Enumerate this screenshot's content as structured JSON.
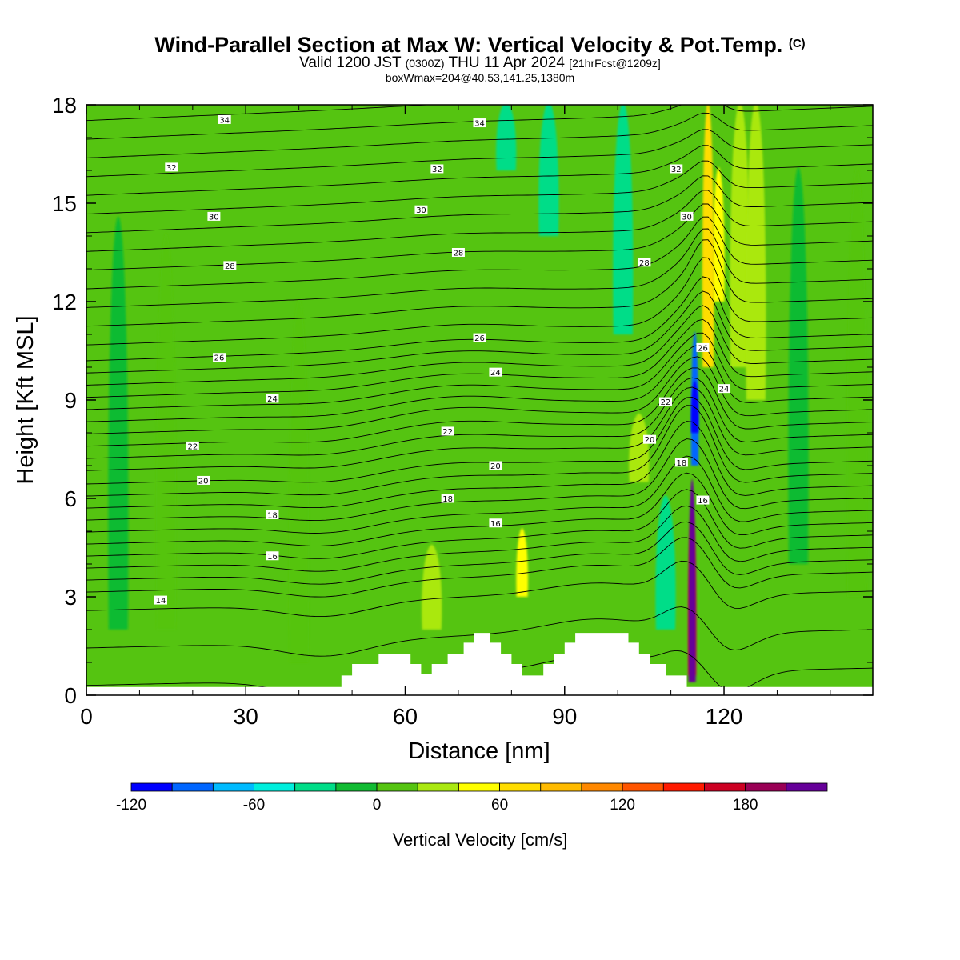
{
  "title": {
    "main": "Wind-Parallel Section at Max W: Vertical Velocity & Pot.Temp.",
    "copyright": "(C)",
    "valid_prefix": "Valid 1200 JST",
    "valid_utc": "(0300Z)",
    "valid_date": "THU 11 Apr 2024",
    "forecast_info": "[21hrFcst@1209z]",
    "box_info": "boxWmax=204@40.53,141.25,1380m"
  },
  "chart_data": {
    "type": "heatmap",
    "xlabel": "Distance [nm]",
    "ylabel": "Height [Kft MSL]",
    "xlim": [
      0,
      148
    ],
    "ylim": [
      0,
      18
    ],
    "x_ticks": [
      0,
      30,
      60,
      90,
      120
    ],
    "y_ticks": [
      0,
      3,
      6,
      9,
      12,
      15,
      18
    ],
    "colorbar": {
      "label": "Vertical Velocity [cm/s]",
      "range": [
        -120,
        220
      ],
      "step": 20,
      "tick_values": [
        -120,
        -60,
        0,
        60,
        120,
        180
      ],
      "tick_labels": [
        "-120",
        "-60",
        "0",
        "60",
        "120",
        "180"
      ],
      "colors": [
        "#0000ff",
        "#0066ff",
        "#00bbff",
        "#00eedd",
        "#00dd88",
        "#11bb33",
        "#55c411",
        "#aae811",
        "#ffff00",
        "#ffdd00",
        "#ffbb00",
        "#ff8800",
        "#ff5500",
        "#ff1a00",
        "#cc0022",
        "#990055",
        "#660099"
      ]
    },
    "background_level": 0,
    "vertical_velocity_features": [
      {
        "x": 114,
        "bottom": 0.4,
        "top": 6.5,
        "value": 200
      },
      {
        "x": 114,
        "bottom": 0.6,
        "top": 5.5,
        "value": 150
      },
      {
        "x": 114.5,
        "bottom": 7,
        "top": 11,
        "value": -100
      },
      {
        "x": 114.5,
        "bottom": 8,
        "top": 9.5,
        "value": -120
      },
      {
        "x": 117,
        "bottom": 10,
        "top": 18,
        "value": 60
      },
      {
        "x": 119,
        "bottom": 12,
        "top": 16,
        "value": 50
      },
      {
        "x": 109,
        "bottom": 2,
        "top": 6,
        "value": -30
      },
      {
        "x": 82,
        "bottom": 3,
        "top": 5,
        "value": 50
      },
      {
        "x": 65,
        "bottom": 2,
        "top": 4.5,
        "value": 30
      },
      {
        "x": 104,
        "bottom": 6.5,
        "top": 8.5,
        "value": 30
      },
      {
        "x": 79,
        "bottom": 16,
        "top": 18,
        "value": -30
      },
      {
        "x": 87,
        "bottom": 14,
        "top": 18,
        "value": -30
      },
      {
        "x": 101,
        "bottom": 11,
        "top": 18,
        "value": -30
      },
      {
        "x": 126,
        "bottom": 9,
        "top": 18,
        "value": 30
      },
      {
        "x": 123,
        "bottom": 10,
        "top": 18,
        "value": 20
      },
      {
        "x": 40,
        "bottom": 1,
        "top": 12,
        "value": 10
      },
      {
        "x": 15,
        "bottom": 2,
        "top": 14,
        "value": 10
      },
      {
        "x": 6,
        "bottom": 2,
        "top": 14.5,
        "value": -10
      },
      {
        "x": 134,
        "bottom": 4,
        "top": 16,
        "value": -10
      },
      {
        "x": 145,
        "bottom": 3,
        "top": 16,
        "value": 10
      }
    ],
    "terrain": [
      [
        0,
        0.25
      ],
      [
        48,
        0.25
      ],
      [
        48,
        0.6
      ],
      [
        50,
        0.6
      ],
      [
        50,
        0.95
      ],
      [
        55,
        0.95
      ],
      [
        55,
        1.25
      ],
      [
        61,
        1.25
      ],
      [
        61,
        0.95
      ],
      [
        63,
        0.95
      ],
      [
        63,
        0.65
      ],
      [
        65,
        0.65
      ],
      [
        65,
        0.95
      ],
      [
        68,
        0.95
      ],
      [
        68,
        1.25
      ],
      [
        71,
        1.25
      ],
      [
        71,
        1.6
      ],
      [
        73,
        1.6
      ],
      [
        73,
        1.9
      ],
      [
        76,
        1.9
      ],
      [
        76,
        1.6
      ],
      [
        78,
        1.6
      ],
      [
        78,
        1.25
      ],
      [
        80,
        1.25
      ],
      [
        80,
        0.95
      ],
      [
        82,
        0.95
      ],
      [
        82,
        0.6
      ],
      [
        86,
        0.6
      ],
      [
        86,
        0.95
      ],
      [
        88,
        0.95
      ],
      [
        88,
        1.25
      ],
      [
        90,
        1.25
      ],
      [
        90,
        1.6
      ],
      [
        92,
        1.6
      ],
      [
        92,
        1.9
      ],
      [
        102,
        1.9
      ],
      [
        102,
        1.6
      ],
      [
        104,
        1.6
      ],
      [
        104,
        1.25
      ],
      [
        106,
        1.25
      ],
      [
        106,
        0.95
      ],
      [
        109,
        0.95
      ],
      [
        109,
        0.6
      ],
      [
        113,
        0.6
      ],
      [
        113,
        0.25
      ],
      [
        148,
        0.25
      ]
    ],
    "theta_contours": {
      "levels_start": 12.6,
      "levels_step": 0.6,
      "level_count": 42,
      "labels": [
        {
          "value": "34",
          "x": 26,
          "y": 17.55
        },
        {
          "value": "34",
          "x": 74,
          "y": 17.45
        },
        {
          "value": "32",
          "x": 16,
          "y": 16.1
        },
        {
          "value": "32",
          "x": 66,
          "y": 16.05
        },
        {
          "value": "32",
          "x": 111,
          "y": 16.05
        },
        {
          "value": "30",
          "x": 24,
          "y": 14.6
        },
        {
          "value": "30",
          "x": 63,
          "y": 14.8
        },
        {
          "value": "30",
          "x": 113,
          "y": 14.6
        },
        {
          "value": "28",
          "x": 27,
          "y": 13.1
        },
        {
          "value": "28",
          "x": 70,
          "y": 13.5
        },
        {
          "value": "28",
          "x": 105,
          "y": 13.2
        },
        {
          "value": "26",
          "x": 25,
          "y": 10.3
        },
        {
          "value": "26",
          "x": 74,
          "y": 10.9
        },
        {
          "value": "26",
          "x": 116,
          "y": 10.6
        },
        {
          "value": "24",
          "x": 35,
          "y": 9.05
        },
        {
          "value": "24",
          "x": 77,
          "y": 9.85
        },
        {
          "value": "24",
          "x": 120,
          "y": 9.35
        },
        {
          "value": "22",
          "x": 20,
          "y": 7.6
        },
        {
          "value": "22",
          "x": 68,
          "y": 8.05
        },
        {
          "value": "22",
          "x": 109,
          "y": 8.95
        },
        {
          "value": "20",
          "x": 22,
          "y": 6.55
        },
        {
          "value": "20",
          "x": 77,
          "y": 7.0
        },
        {
          "value": "20",
          "x": 106,
          "y": 7.8
        },
        {
          "value": "18",
          "x": 35,
          "y": 5.5
        },
        {
          "value": "18",
          "x": 68,
          "y": 6.0
        },
        {
          "value": "18",
          "x": 112,
          "y": 7.1
        },
        {
          "value": "16",
          "x": 35,
          "y": 4.25
        },
        {
          "value": "16",
          "x": 77,
          "y": 5.25
        },
        {
          "value": "16",
          "x": 116,
          "y": 5.95
        },
        {
          "value": "14",
          "x": 14,
          "y": 2.9
        }
      ]
    }
  }
}
